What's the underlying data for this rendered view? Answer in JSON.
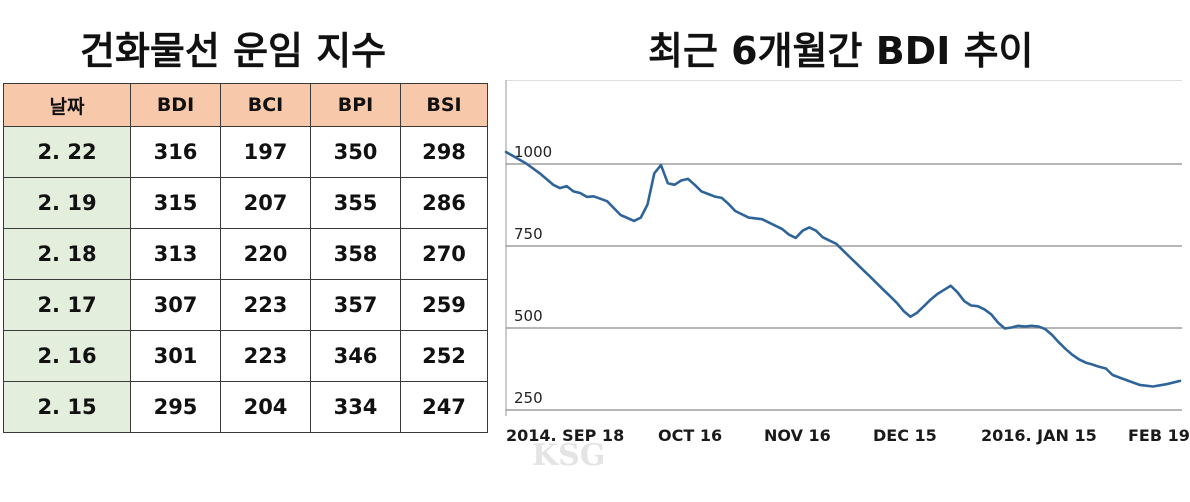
{
  "table_title": "건화물선 운임 지수",
  "chart_title": "최근 6개월간 BDI 추이",
  "watermark": "KSG",
  "chart_data": [
    {
      "type": "table",
      "title": "건화물선 운임 지수",
      "columns": [
        "날짜",
        "BDI",
        "BCI",
        "BPI",
        "BSI"
      ],
      "rows": [
        [
          "2. 22",
          "316",
          "197",
          "350",
          "298"
        ],
        [
          "2. 19",
          "315",
          "207",
          "355",
          "286"
        ],
        [
          "2. 18",
          "313",
          "220",
          "358",
          "270"
        ],
        [
          "2. 17",
          "307",
          "223",
          "357",
          "259"
        ],
        [
          "2. 16",
          "301",
          "223",
          "346",
          "252"
        ],
        [
          "2. 15",
          "295",
          "204",
          "334",
          "247"
        ]
      ]
    },
    {
      "type": "line",
      "title": "최근 6개월간 BDI 추이",
      "x_ticks": [
        "2014. SEP 18",
        "OCT 16",
        "NOV 16",
        "DEC 15",
        "2016. JAN 15",
        "FEB 19"
      ],
      "y_ticks": [
        "1000",
        "750",
        "500",
        "250"
      ],
      "ylim": [
        200,
        1250
      ],
      "grid": true,
      "line_color": "#2f6499",
      "series": [
        {
          "x": [
            0,
            3,
            5,
            7,
            8,
            9,
            10,
            11,
            12,
            13,
            15,
            17,
            19,
            20,
            21,
            22,
            23,
            24,
            25,
            26,
            27,
            28,
            29,
            30,
            31,
            32,
            33,
            34,
            36,
            38,
            40,
            41,
            42,
            43,
            44,
            45,
            46,
            47,
            48,
            49,
            50,
            51,
            52,
            53,
            54,
            55,
            56,
            57,
            58,
            59,
            60,
            61,
            62,
            63,
            64,
            65,
            66,
            67,
            68,
            69,
            70,
            71,
            72,
            73,
            74,
            75,
            76,
            77,
            78,
            79,
            80,
            81,
            82,
            83,
            84,
            85,
            86,
            87,
            88,
            89,
            90,
            92,
            94,
            96,
            98,
            100
          ],
          "values": [
            1000,
            965,
            935,
            900,
            890,
            896,
            880,
            875,
            863,
            865,
            850,
            808,
            790,
            800,
            840,
            935,
            960,
            905,
            900,
            913,
            918,
            900,
            880,
            872,
            864,
            860,
            842,
            820,
            800,
            795,
            775,
            765,
            748,
            738,
            760,
            770,
            760,
            740,
            730,
            720,
            700,
            680,
            660,
            640,
            620,
            600,
            580,
            560,
            540,
            515,
            498,
            510,
            530,
            550,
            567,
            580,
            592,
            572,
            545,
            532,
            530,
            520,
            505,
            480,
            462,
            465,
            470,
            468,
            470,
            468,
            460,
            443,
            420,
            400,
            382,
            368,
            358,
            352,
            345,
            340,
            320,
            305,
            290,
            285,
            292,
            302
          ]
        }
      ]
    }
  ]
}
